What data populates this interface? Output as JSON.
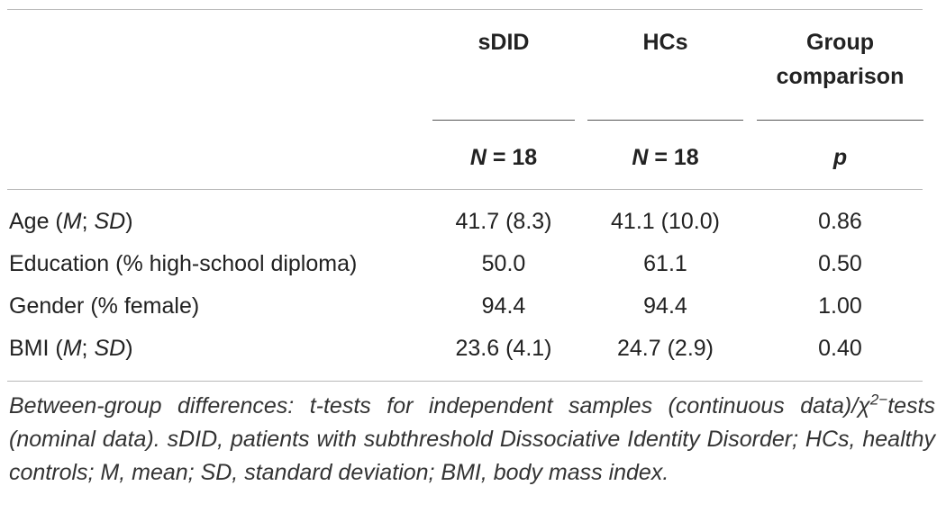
{
  "table": {
    "headers": {
      "col1": "sDID",
      "col2": "HCs",
      "col3_line1": "Group",
      "col3_line2": "comparison"
    },
    "subheaders": {
      "col1_n": "N",
      "col1_eq": " = 18",
      "col2_n": "N",
      "col2_eq": " = 18",
      "col3": "p"
    },
    "rows": [
      {
        "label_pre": "Age (",
        "label_i1": "M",
        "label_mid": "; ",
        "label_i2": "SD",
        "label_post": ")",
        "sdid": "41.7 (8.3)",
        "hcs": "41.1 (10.0)",
        "p": "0.86"
      },
      {
        "label": "Education (% high-school diploma)",
        "sdid": "50.0",
        "hcs": "61.1",
        "p": "0.50"
      },
      {
        "label": "Gender (% female)",
        "sdid": "94.4",
        "hcs": "94.4",
        "p": "1.00"
      },
      {
        "label_pre": "BMI (",
        "label_i1": "M",
        "label_mid": "; ",
        "label_i2": "SD",
        "label_post": ")",
        "sdid": "23.6 (4.1)",
        "hcs": "24.7 (2.9)",
        "p": "0.40"
      }
    ],
    "footnote": {
      "part1": "Between-group differences: t-tests for independent samples (continuous data)/χ",
      "sup": "2−",
      "part2": "tests (nominal data). sDID, patients with subthreshold Dissociative Identity Disorder; HCs, healthy controls; M, mean; SD, standard deviation; BMI, body mass index."
    }
  }
}
